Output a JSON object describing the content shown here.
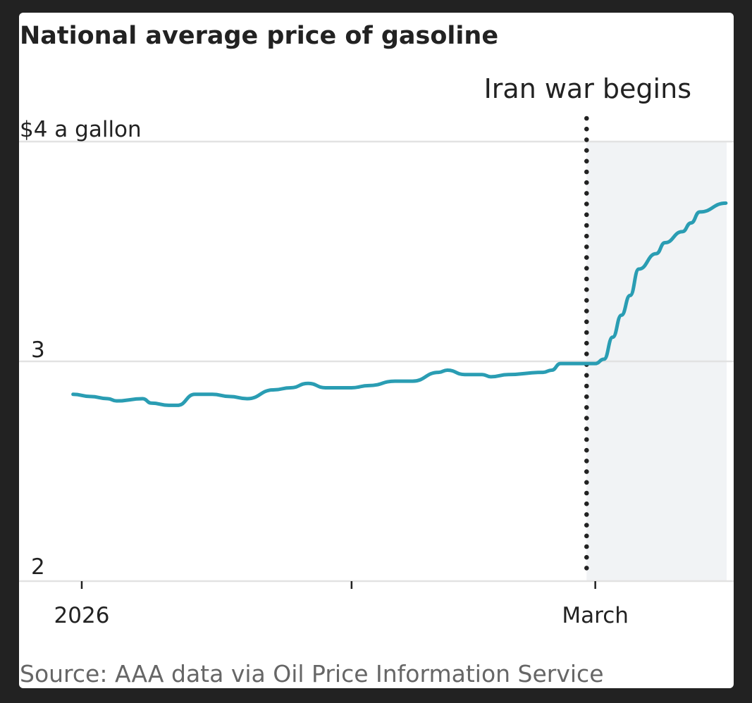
{
  "chart_data": {
    "type": "line",
    "title": "National average price of gasoline",
    "source": "Source: AAA data via Oil Price Information Service",
    "y_unit_label": "$4 a gallon",
    "ylim": [
      2,
      4
    ],
    "y_ticks": [
      {
        "value": 4,
        "label": "$4 a gallon"
      },
      {
        "value": 3,
        "label": "3"
      },
      {
        "value": 2,
        "label": "2"
      }
    ],
    "x_ticks": [
      {
        "date": "2026-01-01",
        "label": "2026"
      },
      {
        "date": "2026-02-01",
        "label": ""
      },
      {
        "date": "2026-03-01",
        "label": "March"
      }
    ],
    "grid": "horizontal",
    "line_color": "#2a9db3",
    "shade_color": "#f1f3f5",
    "annotation": {
      "date": "2026-02-28",
      "label": "Iran war begins"
    },
    "series": [
      {
        "x": [
          "2025-12-31",
          "2026-01-02",
          "2026-01-04",
          "2026-01-05",
          "2026-01-08",
          "2026-01-09",
          "2026-01-11",
          "2026-01-12",
          "2026-01-14",
          "2026-01-16",
          "2026-01-18",
          "2026-01-20",
          "2026-01-23",
          "2026-01-25",
          "2026-01-27",
          "2026-01-29",
          "2026-02-01",
          "2026-02-03",
          "2026-02-06",
          "2026-02-08",
          "2026-02-11",
          "2026-02-12",
          "2026-02-14",
          "2026-02-16",
          "2026-02-17",
          "2026-02-19",
          "2026-02-23",
          "2026-02-24",
          "2026-02-25",
          "2026-02-27",
          "2026-03-01",
          "2026-03-02",
          "2026-03-03",
          "2026-03-04",
          "2026-03-05",
          "2026-03-06",
          "2026-03-08",
          "2026-03-09",
          "2026-03-11",
          "2026-03-12",
          "2026-03-13",
          "2026-03-16"
        ],
        "values": [
          2.85,
          2.84,
          2.83,
          2.82,
          2.83,
          2.81,
          2.8,
          2.8,
          2.85,
          2.85,
          2.84,
          2.83,
          2.87,
          2.88,
          2.9,
          2.88,
          2.88,
          2.89,
          2.91,
          2.91,
          2.95,
          2.96,
          2.94,
          2.94,
          2.93,
          2.94,
          2.95,
          2.96,
          2.99,
          2.99,
          2.99,
          3.01,
          3.11,
          3.21,
          3.3,
          3.42,
          3.49,
          3.54,
          3.59,
          3.63,
          3.68,
          3.72
        ]
      }
    ]
  }
}
